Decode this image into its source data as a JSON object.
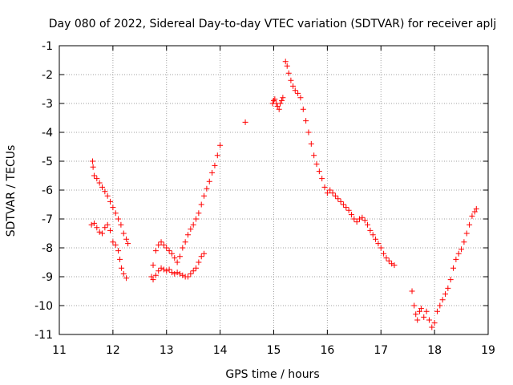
{
  "chart_data": {
    "type": "scatter",
    "title": "Day 080 of 2022, Sidereal Day-to-day VTEC variation (SDTVAR) for receiver aplj",
    "xlabel": "GPS time / hours",
    "ylabel": "SDTVAR / TECUs",
    "xlim": [
      11,
      19
    ],
    "ylim": [
      -11,
      -1
    ],
    "xticks": [
      "11",
      "12",
      "13",
      "14",
      "15",
      "16",
      "17",
      "18",
      "19"
    ],
    "yticks": [
      "-11",
      "-10",
      "-9",
      "-8",
      "-7",
      "-6",
      "-5",
      "-4",
      "-3",
      "-2",
      "-1"
    ],
    "grid": true,
    "marker": "+",
    "color": "#ff0000",
    "series": [
      {
        "name": "arc1-upper",
        "points": [
          [
            11.62,
            -5.0
          ],
          [
            11.63,
            -5.2
          ],
          [
            11.65,
            -5.5
          ],
          [
            11.7,
            -5.6
          ],
          [
            11.75,
            -5.75
          ],
          [
            11.8,
            -5.9
          ],
          [
            11.85,
            -6.05
          ],
          [
            11.9,
            -6.2
          ],
          [
            11.95,
            -6.4
          ],
          [
            12.0,
            -6.6
          ],
          [
            12.05,
            -6.8
          ],
          [
            12.1,
            -7.0
          ],
          [
            12.15,
            -7.2
          ],
          [
            12.2,
            -7.5
          ],
          [
            12.25,
            -7.7
          ],
          [
            12.28,
            -7.85
          ]
        ]
      },
      {
        "name": "arc1-lower",
        "points": [
          [
            11.6,
            -7.2
          ],
          [
            11.65,
            -7.15
          ],
          [
            11.7,
            -7.3
          ],
          [
            11.75,
            -7.45
          ],
          [
            11.8,
            -7.5
          ],
          [
            11.85,
            -7.3
          ],
          [
            11.9,
            -7.2
          ],
          [
            11.95,
            -7.4
          ],
          [
            12.0,
            -7.8
          ],
          [
            12.05,
            -7.9
          ],
          [
            12.1,
            -8.1
          ],
          [
            12.13,
            -8.4
          ],
          [
            12.16,
            -8.7
          ],
          [
            12.2,
            -8.9
          ],
          [
            12.25,
            -9.05
          ]
        ]
      },
      {
        "name": "arc2-upper",
        "points": [
          [
            12.75,
            -8.6
          ],
          [
            12.8,
            -8.1
          ],
          [
            12.85,
            -7.9
          ],
          [
            12.9,
            -7.8
          ],
          [
            12.95,
            -7.9
          ],
          [
            13.0,
            -8.0
          ],
          [
            13.05,
            -8.1
          ],
          [
            13.1,
            -8.2
          ],
          [
            13.15,
            -8.35
          ],
          [
            13.2,
            -8.5
          ],
          [
            13.25,
            -8.3
          ],
          [
            13.3,
            -8.0
          ],
          [
            13.35,
            -7.8
          ],
          [
            13.4,
            -7.55
          ],
          [
            13.45,
            -7.35
          ],
          [
            13.5,
            -7.2
          ],
          [
            13.55,
            -7.0
          ],
          [
            13.6,
            -6.8
          ],
          [
            13.65,
            -6.5
          ],
          [
            13.7,
            -6.2
          ],
          [
            13.75,
            -5.95
          ],
          [
            13.8,
            -5.7
          ],
          [
            13.85,
            -5.4
          ],
          [
            13.9,
            -5.15
          ],
          [
            13.95,
            -4.8
          ],
          [
            14.0,
            -4.45
          ]
        ]
      },
      {
        "name": "arc2-lower",
        "points": [
          [
            12.72,
            -9.0
          ],
          [
            12.75,
            -9.1
          ],
          [
            12.8,
            -8.95
          ],
          [
            12.85,
            -8.8
          ],
          [
            12.9,
            -8.7
          ],
          [
            12.95,
            -8.75
          ],
          [
            13.0,
            -8.8
          ],
          [
            13.05,
            -8.75
          ],
          [
            13.1,
            -8.85
          ],
          [
            13.15,
            -8.9
          ],
          [
            13.2,
            -8.85
          ],
          [
            13.25,
            -8.9
          ],
          [
            13.3,
            -8.95
          ],
          [
            13.35,
            -9.0
          ],
          [
            13.4,
            -9.0
          ],
          [
            13.45,
            -8.9
          ],
          [
            13.5,
            -8.8
          ],
          [
            13.55,
            -8.7
          ],
          [
            13.6,
            -8.5
          ],
          [
            13.65,
            -8.3
          ],
          [
            13.7,
            -8.2
          ]
        ]
      },
      {
        "name": "isolated",
        "points": [
          [
            14.47,
            -3.65
          ]
        ]
      },
      {
        "name": "arc3-cluster",
        "points": [
          [
            14.98,
            -3.0
          ],
          [
            15.0,
            -2.9
          ],
          [
            15.02,
            -2.85
          ],
          [
            15.05,
            -3.0
          ],
          [
            15.07,
            -3.1
          ],
          [
            15.1,
            -3.2
          ],
          [
            15.12,
            -3.0
          ],
          [
            15.15,
            -2.9
          ],
          [
            15.17,
            -2.8
          ]
        ]
      },
      {
        "name": "arc3-main",
        "points": [
          [
            15.22,
            -1.55
          ],
          [
            15.25,
            -1.7
          ],
          [
            15.28,
            -1.95
          ],
          [
            15.32,
            -2.2
          ],
          [
            15.36,
            -2.4
          ],
          [
            15.4,
            -2.55
          ],
          [
            15.45,
            -2.65
          ],
          [
            15.5,
            -2.8
          ],
          [
            15.55,
            -3.2
          ],
          [
            15.6,
            -3.6
          ],
          [
            15.65,
            -4.0
          ],
          [
            15.7,
            -4.4
          ],
          [
            15.75,
            -4.8
          ],
          [
            15.8,
            -5.1
          ],
          [
            15.85,
            -5.35
          ],
          [
            15.9,
            -5.6
          ],
          [
            15.95,
            -5.9
          ],
          [
            16.0,
            -6.1
          ],
          [
            16.05,
            -6.0
          ],
          [
            16.1,
            -6.1
          ],
          [
            16.15,
            -6.2
          ],
          [
            16.2,
            -6.3
          ],
          [
            16.25,
            -6.4
          ],
          [
            16.3,
            -6.5
          ],
          [
            16.35,
            -6.6
          ],
          [
            16.4,
            -6.7
          ],
          [
            16.45,
            -6.85
          ],
          [
            16.5,
            -7.0
          ],
          [
            16.55,
            -7.1
          ],
          [
            16.6,
            -7.0
          ],
          [
            16.65,
            -6.95
          ],
          [
            16.7,
            -7.05
          ],
          [
            16.75,
            -7.2
          ],
          [
            16.8,
            -7.4
          ],
          [
            16.85,
            -7.55
          ],
          [
            16.9,
            -7.7
          ],
          [
            16.95,
            -7.85
          ],
          [
            17.0,
            -8.0
          ],
          [
            17.05,
            -8.2
          ],
          [
            17.1,
            -8.35
          ],
          [
            17.15,
            -8.45
          ],
          [
            17.2,
            -8.55
          ],
          [
            17.25,
            -8.6
          ]
        ]
      },
      {
        "name": "arc4",
        "points": [
          [
            17.58,
            -9.5
          ],
          [
            17.62,
            -10.0
          ],
          [
            17.65,
            -10.3
          ],
          [
            17.68,
            -10.5
          ],
          [
            17.72,
            -10.2
          ],
          [
            17.75,
            -10.1
          ],
          [
            17.8,
            -10.4
          ],
          [
            17.85,
            -10.2
          ],
          [
            17.9,
            -10.5
          ],
          [
            17.95,
            -10.75
          ],
          [
            18.0,
            -10.6
          ],
          [
            18.05,
            -10.2
          ],
          [
            18.1,
            -10.0
          ],
          [
            18.15,
            -9.8
          ],
          [
            18.2,
            -9.6
          ],
          [
            18.25,
            -9.4
          ],
          [
            18.3,
            -9.1
          ],
          [
            18.35,
            -8.7
          ],
          [
            18.4,
            -8.4
          ],
          [
            18.45,
            -8.2
          ],
          [
            18.5,
            -8.05
          ],
          [
            18.55,
            -7.8
          ],
          [
            18.6,
            -7.5
          ],
          [
            18.65,
            -7.2
          ],
          [
            18.7,
            -6.9
          ],
          [
            18.75,
            -6.75
          ],
          [
            18.78,
            -6.65
          ]
        ]
      }
    ]
  }
}
